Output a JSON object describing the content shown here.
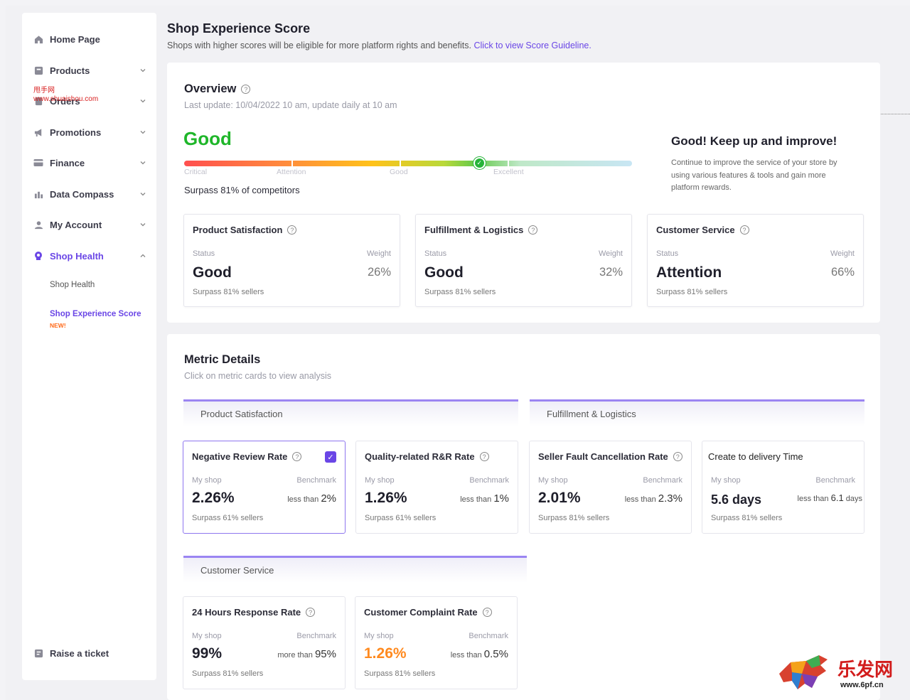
{
  "watermark": {
    "line1": "甩手网",
    "line2": "www.shuaishou.com"
  },
  "sidebar": {
    "items": [
      {
        "label": "Home Page",
        "icon": "home-icon"
      },
      {
        "label": "Products",
        "icon": "box-icon"
      },
      {
        "label": "Orders",
        "icon": "orders-icon"
      },
      {
        "label": "Promotions",
        "icon": "megaphone-icon"
      },
      {
        "label": "Finance",
        "icon": "card-icon"
      },
      {
        "label": "Data Compass",
        "icon": "chart-icon"
      },
      {
        "label": "My Account",
        "icon": "user-icon"
      },
      {
        "label": "Shop Health",
        "icon": "shield-icon"
      }
    ],
    "sub_items": [
      "Shop Health",
      "Shop Experience  Score"
    ],
    "new_tag": "NEW!",
    "raise_ticket": "Raise a ticket"
  },
  "header": {
    "title": "Shop Experience Score",
    "subtitle": "Shops with higher scores will be eligible for more platform rights and benefits.",
    "link": "Click to view Score Guideline."
  },
  "overview": {
    "title": "Overview",
    "last_update": "Last update: 10/04/2022 10 am, update daily at 10 am",
    "rating": "Good",
    "scale_labels": [
      "Critical",
      "Attention",
      "Good",
      "Excellent"
    ],
    "score_level": 0.66,
    "surpass": "Surpass 81% of competitors",
    "tip_title": "Good! Keep up and improve!",
    "tip_text": "Continue to improve the service of your store by using various features & tools and gain more platform rewards.",
    "cards": [
      {
        "title": "Product Satisfaction",
        "status_label": "Status",
        "weight_label": "Weight",
        "status": "Good",
        "weight": "26%",
        "foot": "Surpass 81% sellers"
      },
      {
        "title": "Fulfillment & Logistics",
        "status_label": "Status",
        "weight_label": "Weight",
        "status": "Good",
        "weight": "32%",
        "foot": "Surpass 81% sellers"
      },
      {
        "title": "Customer Service",
        "status_label": "Status",
        "weight_label": "Weight",
        "status": "Attention",
        "weight": "66%",
        "foot": "Surpass 81% sellers"
      }
    ]
  },
  "metrics": {
    "title": "Metric Details",
    "hint": "Click on metric cards to view analysis",
    "sections": [
      "Product Satisfaction",
      "Fulfillment & Logistics",
      "Customer Service"
    ],
    "cards": [
      {
        "title": "Negative Review Rate",
        "my_label": "My shop",
        "bench_label": "Benchmark",
        "value": "2.26%",
        "bench_prefix": "less than",
        "bench": "2%",
        "foot": "Surpass 61% sellers"
      },
      {
        "title": "Quality-related R&R Rate",
        "my_label": "My shop",
        "bench_label": "Benchmark",
        "value": "1.26%",
        "bench_prefix": "less than",
        "bench": "1%",
        "foot": "Surpass 61% sellers"
      },
      {
        "title": "Seller Fault Cancellation Rate",
        "my_label": "My shop",
        "bench_label": "Benchmark",
        "value": "2.01%",
        "bench_prefix": "less than",
        "bench": "2.3%",
        "foot": "Surpass 81% sellers"
      },
      {
        "title": "Create to delivery Time",
        "my_label": "My shop",
        "bench_label": "Benchmark",
        "value": "5.6 days",
        "bench_prefix": "less than",
        "bench": "6.1",
        "bench_suffix": "days",
        "foot": "Surpass 81% sellers"
      },
      {
        "title": "24 Hours Response Rate",
        "my_label": "My shop",
        "bench_label": "Benchmark",
        "value": "99%",
        "bench_prefix": "more than",
        "bench": "95%",
        "foot": "Surpass 81% sellers"
      },
      {
        "title": "Customer Complaint Rate",
        "my_label": "My shop",
        "bench_label": "Benchmark",
        "value": "1.26%",
        "bench_prefix": "less than",
        "bench": "0.5%",
        "foot": "Surpass 81% sellers"
      }
    ]
  },
  "logo": {
    "text": "乐发网",
    "url": "www.6pf.cn"
  },
  "colors": {
    "accent": "#6a46e6",
    "good": "#27b43a",
    "warning": "#ff8a1f"
  }
}
